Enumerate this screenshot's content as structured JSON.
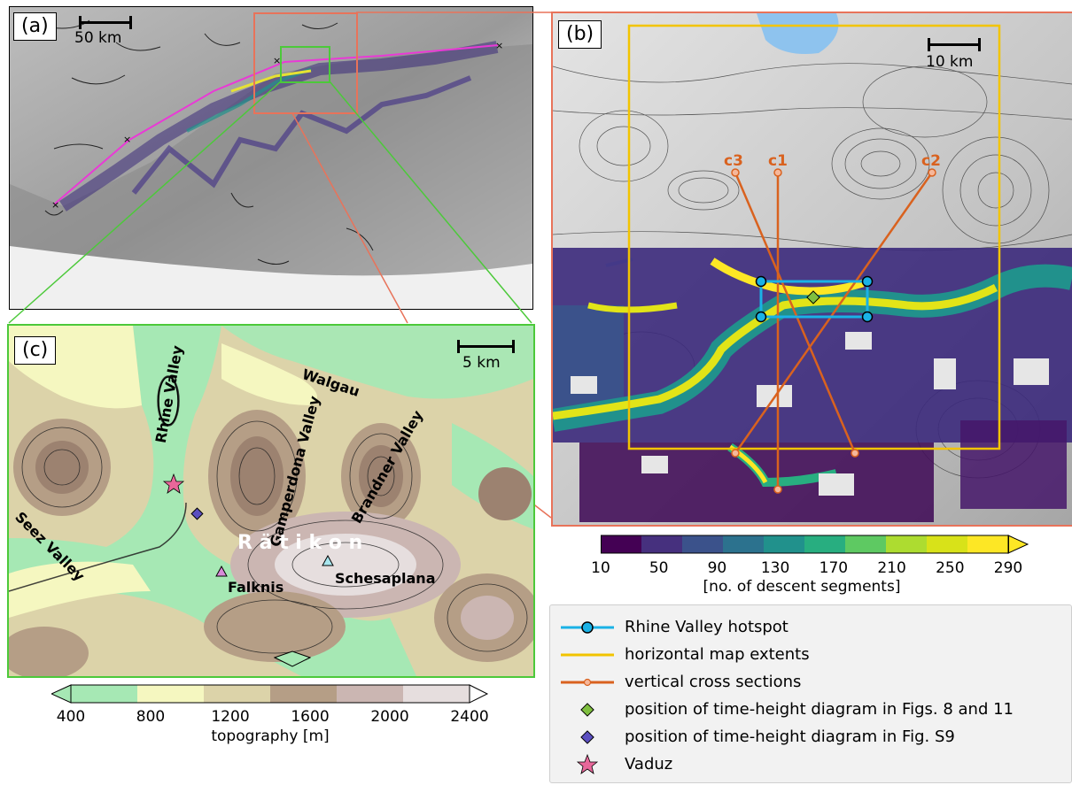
{
  "panels": {
    "a": {
      "label": "(a)",
      "scalebar": "50 km"
    },
    "b": {
      "label": "(b)",
      "scalebar": "10 km",
      "cross_sections": [
        "c1",
        "c2",
        "c3"
      ]
    },
    "c": {
      "label": "(c)",
      "scalebar": "5 km"
    }
  },
  "map_labels": {
    "rhine_valley": "Rhine Valley",
    "walgau": "Walgau",
    "gamperdona": "Gamperdona Valley",
    "brandner": "Brandner Valley",
    "seez": "Seez Valley",
    "raetikon": "R ä t i k o n",
    "falknis": "Falknis",
    "schesaplana": "Schesaplana"
  },
  "colorbar_descent": {
    "ticks": [
      "10",
      "50",
      "90",
      "130",
      "170",
      "210",
      "250",
      "290"
    ],
    "label": "[no. of descent segments]",
    "colors": [
      "#440154",
      "#46307e",
      "#3b528b",
      "#2c728e",
      "#21918c",
      "#28ae80",
      "#5ec962",
      "#addc30",
      "#d8e219",
      "#fde725"
    ]
  },
  "colorbar_topo": {
    "ticks": [
      "400",
      "800",
      "1200",
      "1600",
      "2000",
      "2400"
    ],
    "label": "topography [m]",
    "colors": [
      "#a6e8b4",
      "#f5f7c0",
      "#dcd3a9",
      "#b59e86",
      "#cbb6b2",
      "#e6dede"
    ]
  },
  "legend": [
    {
      "label": "Rhine Valley hotspot",
      "symbol": "hotspot-line",
      "color": "#1ab2e6"
    },
    {
      "label": "horizontal map extents",
      "symbol": "yellow-line",
      "color": "#f2c400"
    },
    {
      "label": "vertical cross sections",
      "symbol": "orange-line",
      "color": "#d9621f"
    },
    {
      "label": "position of time-height diagram in Figs. 8 and 11",
      "symbol": "green-diamond",
      "color": "#7fbf3f"
    },
    {
      "label": "position of time-height diagram in Fig. S9",
      "symbol": "purple-diamond",
      "color": "#5b4fc0"
    },
    {
      "label": "Vaduz",
      "symbol": "pink-star",
      "color": "#e8679a"
    }
  ],
  "colors": {
    "highlight_box": "#e8735a",
    "zoom_box": "#4cc93a",
    "ridge_line": "#e93ad6"
  }
}
